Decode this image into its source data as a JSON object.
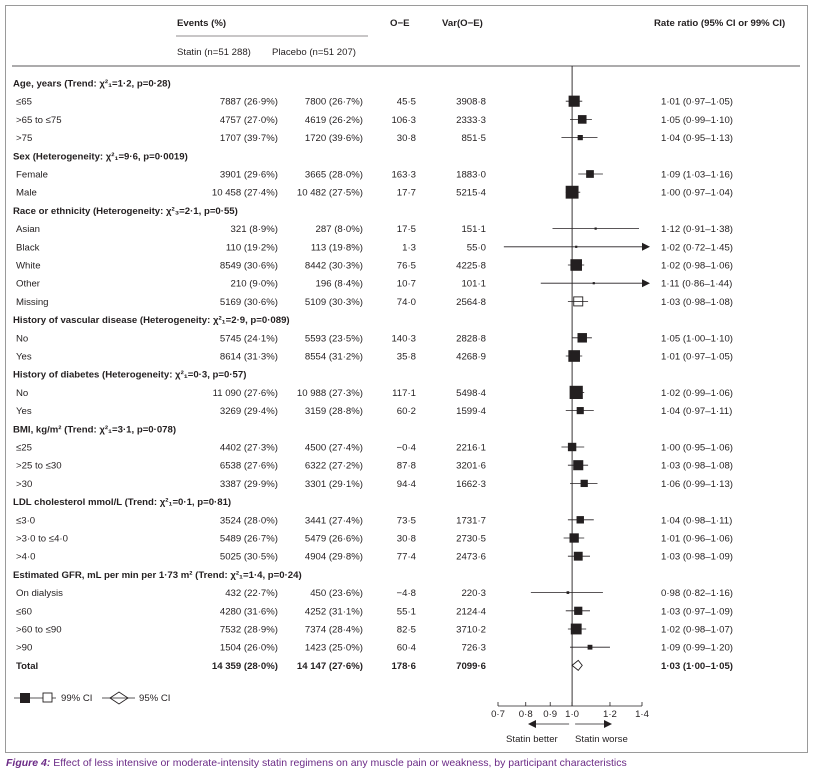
{
  "header": {
    "events": "Events (%)",
    "statin": "Statin (n=51 288)",
    "placebo": "Placebo (n=51 207)",
    "oe": "O−E",
    "var": "Var(O−E)",
    "rate_ratio": "Rate ratio (95% CI or 99% CI)"
  },
  "legend": {
    "ci99": "99% CI",
    "ci95": "95% CI"
  },
  "axis": {
    "ticks": [
      0.7,
      0.8,
      0.9,
      1.0,
      1.2,
      1.4
    ],
    "tick_labels": [
      "0·7",
      "0·8",
      "0·9",
      "1·0",
      "1·2",
      "1·4"
    ],
    "better": "Statin better",
    "worse": "Statin worse"
  },
  "caption": {
    "label": "Figure 4:",
    "text": " Effect of less intensive or moderate-intensity statin regimens on any muscle pain or weakness, by participant characteristics"
  },
  "chart_data": {
    "type": "forest",
    "xlim": [
      0.7,
      1.4
    ],
    "scale": "log",
    "reference": 1.0,
    "groups": [
      {
        "title": "Age, years (Trend: χ²₁=1·2, p=0·28)",
        "rows": [
          {
            "label": "≤65",
            "statin": "7887 (26·9%)",
            "placebo": "7800 (26·7%)",
            "oe": "45·5",
            "var": "3908·8",
            "ci": "1·01 (0·97–1·05)",
            "rr": 1.01,
            "lo": 0.97,
            "hi": 1.05,
            "w": 3908.8,
            "open": false
          },
          {
            "label": ">65 to ≤75",
            "statin": "4757 (27·0%)",
            "placebo": "4619 (26·2%)",
            "oe": "106·3",
            "var": "2333·3",
            "ci": "1·05 (0·99–1·10)",
            "rr": 1.05,
            "lo": 0.99,
            "hi": 1.1,
            "w": 2333.3,
            "open": false
          },
          {
            "label": ">75",
            "statin": "1707 (39·7%)",
            "placebo": "1720 (39·6%)",
            "oe": "30·8",
            "var": "851·5",
            "ci": "1·04 (0·95–1·13)",
            "rr": 1.04,
            "lo": 0.95,
            "hi": 1.13,
            "w": 851.5,
            "open": false
          }
        ]
      },
      {
        "title": "Sex (Heterogeneity: χ²₁=9·6, p=0·0019)",
        "rows": [
          {
            "label": "Female",
            "statin": "3901 (29·6%)",
            "placebo": "3665 (28·0%)",
            "oe": "163·3",
            "var": "1883·0",
            "ci": "1·09 (1·03–1·16)",
            "rr": 1.09,
            "lo": 1.03,
            "hi": 1.16,
            "w": 1883.0,
            "open": false
          },
          {
            "label": "Male",
            "statin": "10 458 (27·4%)",
            "placebo": "10 482 (27·5%)",
            "oe": "17·7",
            "var": "5215·4",
            "ci": "1·00 (0·97–1·04)",
            "rr": 1.0,
            "lo": 0.97,
            "hi": 1.04,
            "w": 5215.4,
            "open": false
          }
        ]
      },
      {
        "title": "Race or ethnicity (Heterogeneity: χ²₃=2·1, p=0·55)",
        "rows": [
          {
            "label": "Asian",
            "statin": "321 (8·9%)",
            "placebo": "287 (8·0%)",
            "oe": "17·5",
            "var": "151·1",
            "ci": "1·12 (0·91–1·38)",
            "rr": 1.12,
            "lo": 0.91,
            "hi": 1.38,
            "w": 151.1,
            "open": false
          },
          {
            "label": "Black",
            "statin": "110 (19·2%)",
            "placebo": "113 (19·8%)",
            "oe": "1·3",
            "var": "55·0",
            "ci": "1·02 (0·72–1·45)",
            "rr": 1.02,
            "lo": 0.72,
            "hi": 1.45,
            "w": 55.0,
            "open": false
          },
          {
            "label": "White",
            "statin": "8549 (30·6%)",
            "placebo": "8442 (30·3%)",
            "oe": "76·5",
            "var": "4225·8",
            "ci": "1·02 (0·98–1·06)",
            "rr": 1.02,
            "lo": 0.98,
            "hi": 1.06,
            "w": 4225.8,
            "open": false
          },
          {
            "label": "Other",
            "statin": "210 (9·0%)",
            "placebo": "196 (8·4%)",
            "oe": "10·7",
            "var": "101·1",
            "ci": "1·11 (0·86–1·44)",
            "rr": 1.11,
            "lo": 0.86,
            "hi": 1.44,
            "w": 101.1,
            "open": false
          },
          {
            "label": "Missing",
            "statin": "5169 (30·6%)",
            "placebo": "5109 (30·3%)",
            "oe": "74·0",
            "var": "2564·8",
            "ci": "1·03 (0·98–1·08)",
            "rr": 1.03,
            "lo": 0.98,
            "hi": 1.08,
            "w": 2564.8,
            "open": true
          }
        ]
      },
      {
        "title": "History of vascular disease (Heterogeneity: χ²₁=2·9, p=0·089)",
        "rows": [
          {
            "label": "No",
            "statin": "5745 (24·1%)",
            "placebo": "5593 (23·5%)",
            "oe": "140·3",
            "var": "2828·8",
            "ci": "1·05 (1·00–1·10)",
            "rr": 1.05,
            "lo": 1.0,
            "hi": 1.1,
            "w": 2828.8,
            "open": false
          },
          {
            "label": "Yes",
            "statin": "8614 (31·3%)",
            "placebo": "8554 (31·2%)",
            "oe": "35·8",
            "var": "4268·9",
            "ci": "1·01 (0·97–1·05)",
            "rr": 1.01,
            "lo": 0.97,
            "hi": 1.05,
            "w": 4268.9,
            "open": false
          }
        ]
      },
      {
        "title": "History of diabetes (Heterogeneity: χ²₁=0·3, p=0·57)",
        "rows": [
          {
            "label": "No",
            "statin": "11 090 (27·6%)",
            "placebo": "10 988 (27·3%)",
            "oe": "117·1",
            "var": "5498·4",
            "ci": "1·02 (0·99–1·06)",
            "rr": 1.02,
            "lo": 0.99,
            "hi": 1.06,
            "w": 5498.4,
            "open": false
          },
          {
            "label": "Yes",
            "statin": "3269 (29·4%)",
            "placebo": "3159 (28·8%)",
            "oe": "60·2",
            "var": "1599·4",
            "ci": "1·04 (0·97–1·11)",
            "rr": 1.04,
            "lo": 0.97,
            "hi": 1.11,
            "w": 1599.4,
            "open": false
          }
        ]
      },
      {
        "title": "BMI, kg/m² (Trend: χ²₁=3·1, p=0·078)",
        "rows": [
          {
            "label": "≤25",
            "statin": "4402 (27·3%)",
            "placebo": "4500 (27·4%)",
            "oe": "−0·4",
            "var": "2216·1",
            "ci": "1·00 (0·95–1·06)",
            "rr": 1.0,
            "lo": 0.95,
            "hi": 1.06,
            "w": 2216.1,
            "open": false
          },
          {
            "label": ">25 to ≤30",
            "statin": "6538 (27·6%)",
            "placebo": "6322 (27·2%)",
            "oe": "87·8",
            "var": "3201·6",
            "ci": "1·03 (0·98–1·08)",
            "rr": 1.03,
            "lo": 0.98,
            "hi": 1.08,
            "w": 3201.6,
            "open": false
          },
          {
            "label": ">30",
            "statin": "3387 (29·9%)",
            "placebo": "3301 (29·1%)",
            "oe": "94·4",
            "var": "1662·3",
            "ci": "1·06 (0·99–1·13)",
            "rr": 1.06,
            "lo": 0.99,
            "hi": 1.13,
            "w": 1662.3,
            "open": false
          }
        ]
      },
      {
        "title": "LDL cholesterol mmol/L (Trend: χ²₁=0·1, p=0·81)",
        "rows": [
          {
            "label": "≤3·0",
            "statin": "3524 (28·0%)",
            "placebo": "3441 (27·4%)",
            "oe": "73·5",
            "var": "1731·7",
            "ci": "1·04 (0·98–1·11)",
            "rr": 1.04,
            "lo": 0.98,
            "hi": 1.11,
            "w": 1731.7,
            "open": false
          },
          {
            "label": ">3·0 to ≤4·0",
            "statin": "5489 (26·7%)",
            "placebo": "5479 (26·6%)",
            "oe": "30·8",
            "var": "2730·5",
            "ci": "1·01 (0·96–1·06)",
            "rr": 1.01,
            "lo": 0.96,
            "hi": 1.06,
            "w": 2730.5,
            "open": false
          },
          {
            "label": ">4·0",
            "statin": "5025 (30·5%)",
            "placebo": "4904 (29·8%)",
            "oe": "77·4",
            "var": "2473·6",
            "ci": "1·03 (0·98–1·09)",
            "rr": 1.03,
            "lo": 0.98,
            "hi": 1.09,
            "w": 2473.6,
            "open": false
          }
        ]
      },
      {
        "title": "Estimated GFR, mL per min per 1·73 m² (Trend: χ²₁=1·4, p=0·24)",
        "rows": [
          {
            "label": "On dialysis",
            "statin": "432 (22·7%)",
            "placebo": "450 (23·6%)",
            "oe": "−4·8",
            "var": "220·3",
            "ci": "0·98 (0·82–1·16)",
            "rr": 0.98,
            "lo": 0.82,
            "hi": 1.16,
            "w": 220.3,
            "open": false
          },
          {
            "label": "≤60",
            "statin": "4280 (31·6%)",
            "placebo": "4252 (31·1%)",
            "oe": "55·1",
            "var": "2124·4",
            "ci": "1·03 (0·97–1·09)",
            "rr": 1.03,
            "lo": 0.97,
            "hi": 1.09,
            "w": 2124.4,
            "open": false
          },
          {
            "label": ">60 to ≤90",
            "statin": "7532 (28·9%)",
            "placebo": "7374 (28·4%)",
            "oe": "82·5",
            "var": "3710·2",
            "ci": "1·02 (0·98–1·07)",
            "rr": 1.02,
            "lo": 0.98,
            "hi": 1.07,
            "w": 3710.2,
            "open": false
          },
          {
            "label": ">90",
            "statin": "1504 (26·0%)",
            "placebo": "1423 (25·0%)",
            "oe": "60·4",
            "var": "726·3",
            "ci": "1·09 (0·99–1·20)",
            "rr": 1.09,
            "lo": 0.99,
            "hi": 1.2,
            "w": 726.3,
            "open": false
          }
        ]
      }
    ],
    "total": {
      "label": "Total",
      "statin": "14 359 (28·0%)",
      "placebo": "14 147 (27·6%)",
      "oe": "178·6",
      "var": "7099·6",
      "ci": "1·03 (1·00–1·05)",
      "rr": 1.03,
      "lo": 1.0,
      "hi": 1.05
    }
  }
}
